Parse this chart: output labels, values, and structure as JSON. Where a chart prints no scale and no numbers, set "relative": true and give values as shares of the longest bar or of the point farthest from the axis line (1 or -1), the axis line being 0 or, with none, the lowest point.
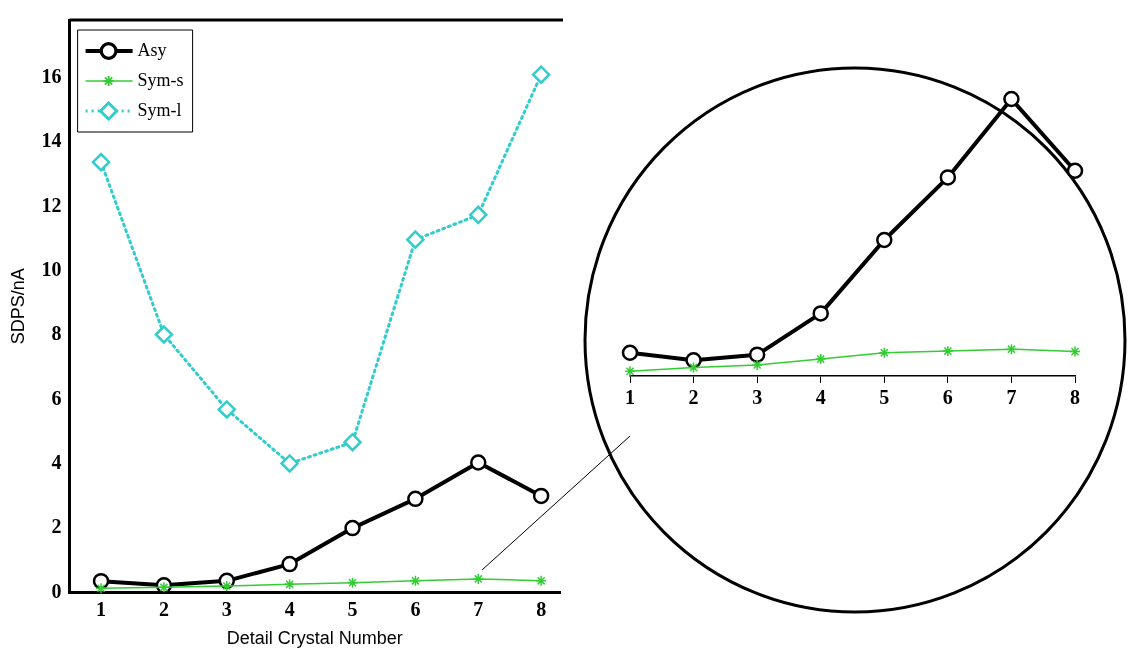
{
  "chart_data": [
    {
      "type": "line",
      "xlabel": "Detail Crystal Number",
      "ylabel": "SDPS/nA",
      "x": [
        1,
        2,
        3,
        4,
        5,
        6,
        7,
        8
      ],
      "xlim": [
        0.5,
        8.3
      ],
      "xticks": [
        1,
        2,
        3,
        4,
        5,
        6,
        7,
        8
      ],
      "ylim": [
        0,
        17.8
      ],
      "yticks": [
        0,
        2,
        4,
        6,
        8,
        10,
        12,
        14,
        16
      ],
      "grid": false,
      "legend": "top left",
      "series": [
        {
          "name": "Asy",
          "color": "#000000",
          "marker": "circle",
          "line_style": "solid",
          "values": [
            0.35,
            0.22,
            0.36,
            0.88,
            2.0,
            2.91,
            4.04,
            3.0
          ]
        },
        {
          "name": "Sym-s",
          "color": "#33cc33",
          "marker": "cross",
          "line_style": "solid",
          "values": [
            0.13,
            0.16,
            0.2,
            0.25,
            0.3,
            0.36,
            0.42,
            0.36
          ]
        },
        {
          "name": "Sym-l",
          "color": "#33cccc",
          "marker": "diamond",
          "line_style": "dotted",
          "values": [
            13.38,
            8.02,
            5.69,
            4.01,
            4.67,
            10.97,
            11.74,
            16.1
          ]
        }
      ]
    },
    {
      "type": "line",
      "relative": true,
      "categories": [
        "1",
        "2",
        "3",
        "4",
        "5",
        "6",
        "7",
        "8"
      ],
      "grid": false,
      "series": [
        {
          "color": "#000000",
          "marker": "circle",
          "line_style": "solid",
          "values": [
            0.084,
            0.057,
            0.077,
            0.226,
            0.491,
            0.717,
            1,
            0.741
          ]
        },
        {
          "color": "#33cc33",
          "marker": "cross",
          "line_style": "solid",
          "values": [
            0.017,
            0.031,
            0.04,
            0.061,
            0.084,
            0.09,
            0.097,
            0.088
          ]
        }
      ]
    }
  ]
}
